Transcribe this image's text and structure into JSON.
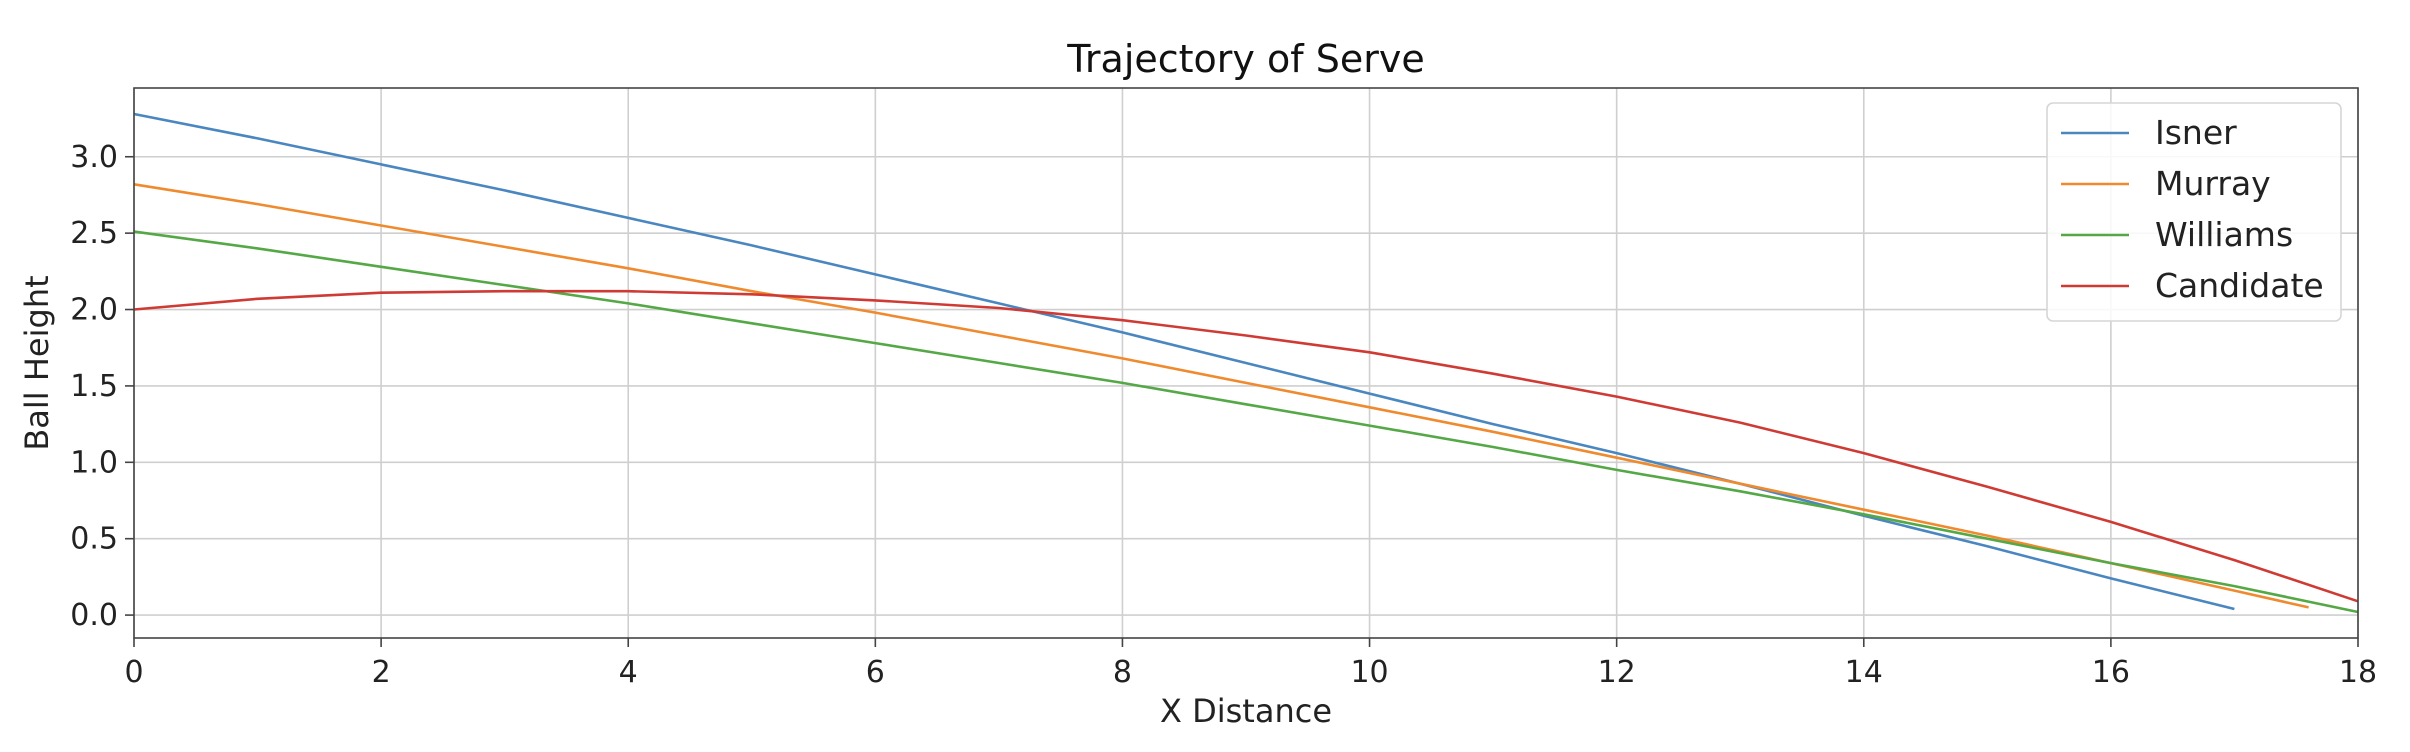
{
  "chart_data": {
    "type": "line",
    "title": "Trajectory of Serve",
    "xlabel": "X Distance",
    "ylabel": "Ball Height",
    "xlim": [
      0,
      18
    ],
    "ylim": [
      -0.15,
      3.45
    ],
    "xticks": [
      0,
      2,
      4,
      6,
      8,
      10,
      12,
      14,
      16,
      18
    ],
    "xtick_labels": [
      "0",
      "2",
      "4",
      "6",
      "8",
      "10",
      "12",
      "14",
      "16",
      "18"
    ],
    "yticks": [
      0.0,
      0.5,
      1.0,
      1.5,
      2.0,
      2.5,
      3.0
    ],
    "ytick_labels": [
      "0.0",
      "0.5",
      "1.0",
      "1.5",
      "2.0",
      "2.5",
      "3.0"
    ],
    "grid": true,
    "legend_position": "top-right",
    "series": [
      {
        "name": "Isner",
        "color": "#4a86c0",
        "x": [
          0,
          1,
          2,
          3,
          4,
          5,
          6,
          7,
          8,
          9,
          10,
          11,
          12,
          13,
          14,
          15,
          16,
          17
        ],
        "y": [
          3.28,
          3.12,
          2.95,
          2.78,
          2.6,
          2.42,
          2.23,
          2.04,
          1.85,
          1.65,
          1.45,
          1.25,
          1.06,
          0.86,
          0.65,
          0.45,
          0.24,
          0.04
        ]
      },
      {
        "name": "Murray",
        "color": "#ef8a2e",
        "x": [
          0,
          1,
          2,
          3,
          4,
          5,
          6,
          7,
          8,
          9,
          10,
          11,
          12,
          13,
          14,
          15,
          16,
          17,
          17.6
        ],
        "y": [
          2.82,
          2.69,
          2.55,
          2.41,
          2.27,
          2.12,
          1.98,
          1.83,
          1.68,
          1.52,
          1.36,
          1.2,
          1.03,
          0.86,
          0.69,
          0.52,
          0.34,
          0.16,
          0.05
        ]
      },
      {
        "name": "Williams",
        "color": "#55a846",
        "x": [
          0,
          1,
          2,
          3,
          4,
          5,
          6,
          7,
          8,
          9,
          10,
          11,
          12,
          13,
          14,
          15,
          16,
          17,
          18
        ],
        "y": [
          2.51,
          2.4,
          2.28,
          2.16,
          2.04,
          1.91,
          1.78,
          1.65,
          1.52,
          1.38,
          1.24,
          1.1,
          0.95,
          0.81,
          0.66,
          0.5,
          0.34,
          0.19,
          0.02
        ]
      },
      {
        "name": "Candidate",
        "color": "#cf3b34",
        "x": [
          0,
          1,
          2,
          3,
          4,
          5,
          6,
          7,
          8,
          9,
          10,
          11,
          12,
          13,
          14,
          15,
          16,
          17,
          18
        ],
        "y": [
          2.0,
          2.07,
          2.11,
          2.12,
          2.12,
          2.1,
          2.06,
          2.01,
          1.93,
          1.83,
          1.72,
          1.58,
          1.43,
          1.26,
          1.06,
          0.84,
          0.61,
          0.36,
          0.09
        ]
      }
    ]
  }
}
